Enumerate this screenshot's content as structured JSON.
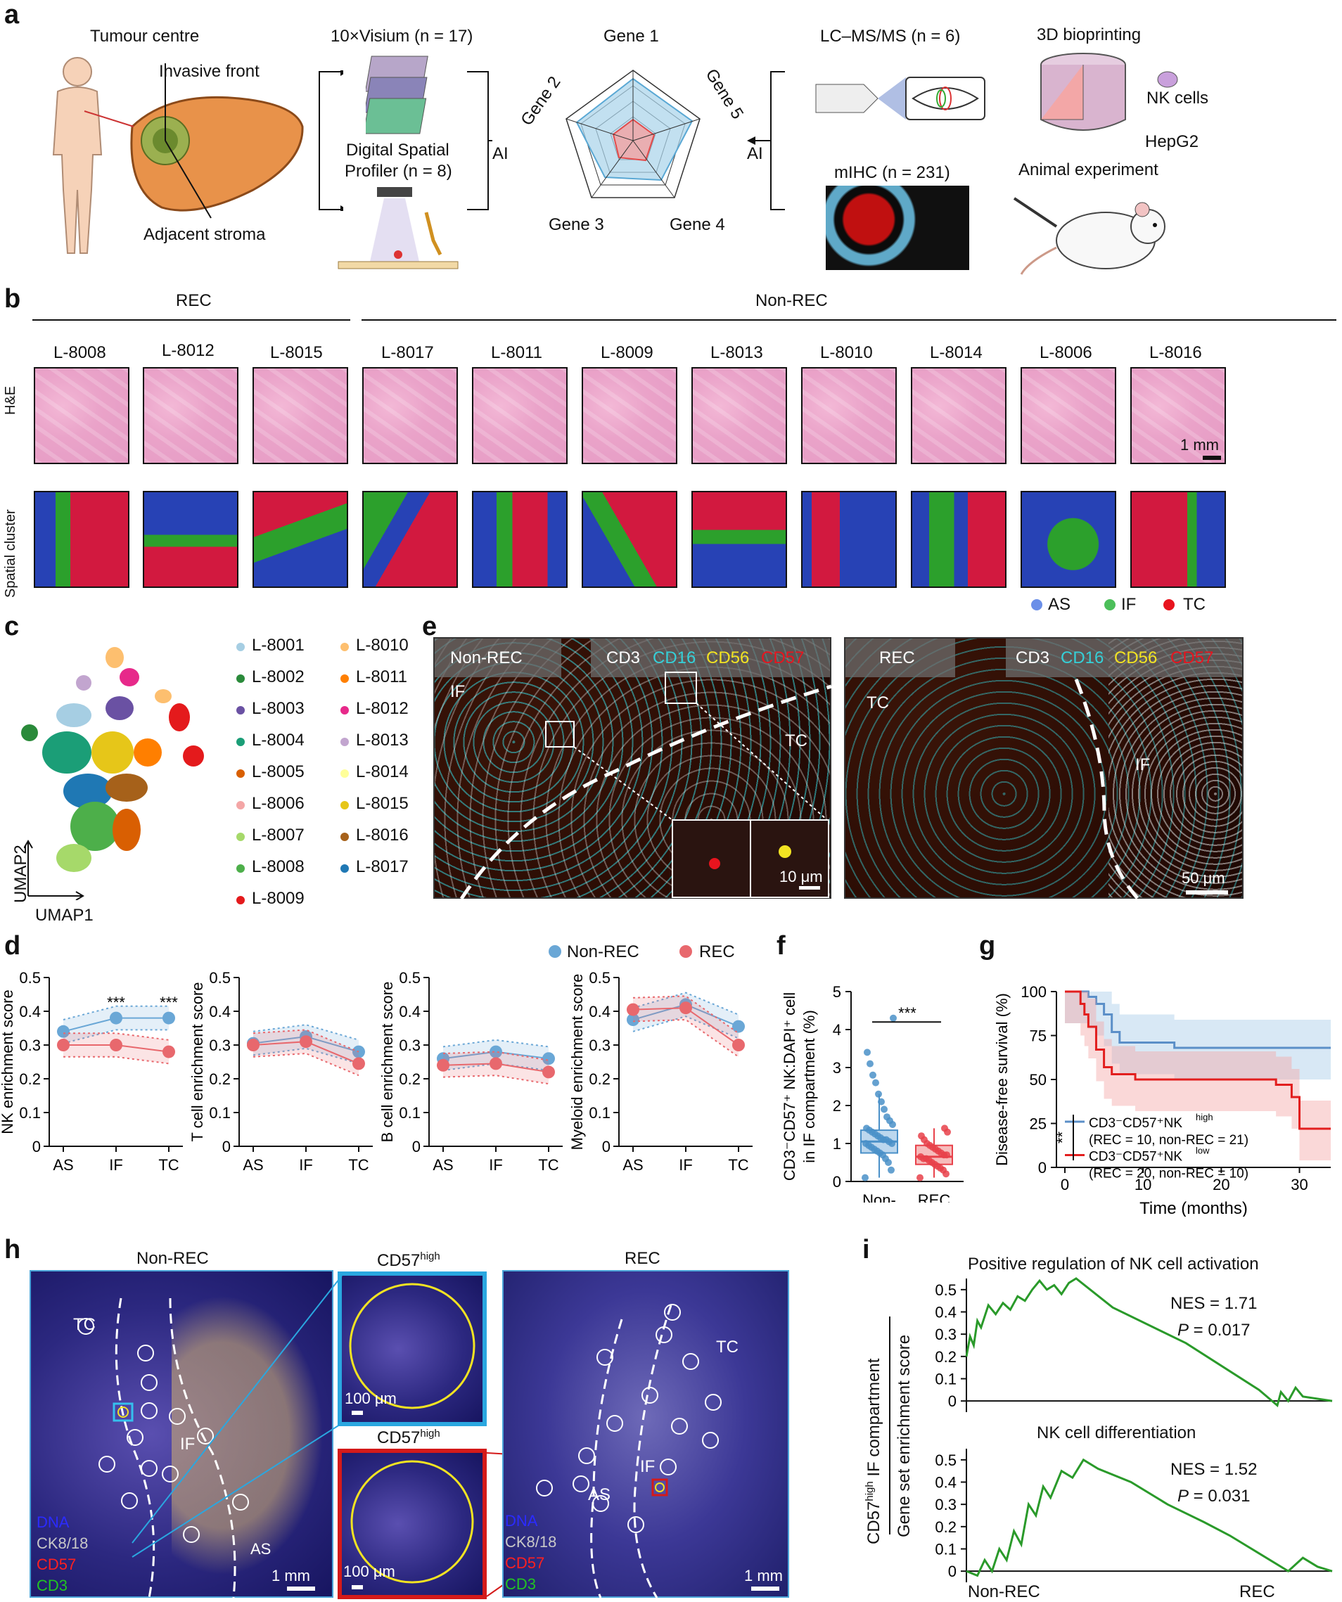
{
  "panels": {
    "a": "a",
    "b": "b",
    "c": "c",
    "d": "d",
    "e": "e",
    "f": "f",
    "g": "g",
    "h": "h",
    "i": "i"
  },
  "panel_a": {
    "tumour_centre": "Tumour centre",
    "invasive_front": "Invasive front",
    "adjacent_stroma": "Adjacent stroma",
    "visium": "10×Visium (n = 17)",
    "dsp_line1": "Digital Spatial",
    "dsp_line2": "Profiler (n = 8)",
    "ai_left": "AI",
    "ai_right": "AI",
    "radar_labels": [
      "Gene 1",
      "Gene 2",
      "Gene 3",
      "Gene 4",
      "Gene 5"
    ],
    "lcms": "LC–MS/MS (n = 6)",
    "mihc": "mIHC (n = 231)",
    "bioprinting": "3D bioprinting",
    "nk_cells": "NK cells",
    "hepg2": "HepG2",
    "animal": "Animal experiment"
  },
  "panel_b": {
    "group_rec": "REC",
    "group_nonrec": "Non-REC",
    "samples": [
      "L-8008",
      "L-8012",
      "L-8015",
      "L-8017",
      "L-8011",
      "L-8009",
      "L-8013",
      "L-8010",
      "L-8014",
      "L-8006",
      "L-8016"
    ],
    "row_he": "H&E",
    "row_spatial": "Spatial cluster",
    "scale": "1 mm",
    "legend": [
      {
        "label": "AS",
        "color": "#6b8fe8"
      },
      {
        "label": "IF",
        "color": "#4cbf5a"
      },
      {
        "label": "TC",
        "color": "#e8141e"
      }
    ]
  },
  "panel_c": {
    "xaxis": "UMAP1",
    "yaxis": "UMAP2",
    "legend": [
      {
        "label": "L-8001",
        "color": "#a6cee3"
      },
      {
        "label": "L-8002",
        "color": "#2a8a3a"
      },
      {
        "label": "L-8003",
        "color": "#6a51a3"
      },
      {
        "label": "L-8004",
        "color": "#1b9e77"
      },
      {
        "label": "L-8005",
        "color": "#d95f02"
      },
      {
        "label": "L-8006",
        "color": "#f4a6a6"
      },
      {
        "label": "L-8007",
        "color": "#a6d96a"
      },
      {
        "label": "L-8008",
        "color": "#4daf4a"
      },
      {
        "label": "L-8009",
        "color": "#e41a1c"
      },
      {
        "label": "L-8010",
        "color": "#fdbf6f"
      },
      {
        "label": "L-8011",
        "color": "#ff7f00"
      },
      {
        "label": "L-8012",
        "color": "#e7298a"
      },
      {
        "label": "L-8013",
        "color": "#c2a5cf"
      },
      {
        "label": "L-8014",
        "color": "#ffff99"
      },
      {
        "label": "L-8015",
        "color": "#e6c619"
      },
      {
        "label": "L-8016",
        "color": "#a6611a"
      },
      {
        "label": "L-8017",
        "color": "#1f78b4"
      }
    ]
  },
  "panel_e": {
    "left_title": "Non-REC",
    "right_title": "REC",
    "markers": [
      {
        "label": "CD3",
        "color": "#ffffff"
      },
      {
        "label": "CD16",
        "color": "#35d0d8"
      },
      {
        "label": "CD56",
        "color": "#f2e322"
      },
      {
        "label": "CD57",
        "color": "#e8141e"
      }
    ],
    "if_label": "IF",
    "tc_label": "TC",
    "scale_small": "10 μm",
    "scale_large": "50 μm"
  },
  "panel_d": {
    "legend": [
      {
        "label": "Non-REC",
        "color": "#6aa7d6"
      },
      {
        "label": "REC",
        "color": "#e8686d"
      }
    ],
    "signif": [
      "***",
      "***"
    ]
  },
  "panel_f": {
    "ylabel_line1": "CD3⁻CD57⁺ NK:DAPI⁺ cell",
    "ylabel_line2": "in IF compartment (%)",
    "signif": "***",
    "xticks_line1": [
      "Non-",
      "REC"
    ],
    "xticks_line2": [
      "REC",
      ""
    ]
  },
  "panel_g": {
    "signif": "**",
    "legend_high_1": "CD3⁻CD57⁺NK",
    "legend_high_sup": "high",
    "legend_high_2": "(REC = 10, non-REC = 21)",
    "legend_low_1": "CD3⁻CD57⁺NK",
    "legend_low_sup": "low",
    "legend_low_2": "(REC = 20, non-REC = 10)"
  },
  "panel_h": {
    "left_title": "Non-REC",
    "right_title": "REC",
    "zoom_title_main": "CD57",
    "zoom_title_sup": "high",
    "region_labels": [
      "TC",
      "IF",
      "AS"
    ],
    "channels": [
      {
        "label": "DNA",
        "color": "#2b2bff"
      },
      {
        "label": "CK8/18",
        "color": "#c8c8c8"
      },
      {
        "label": "CD57",
        "color": "#ff2020"
      },
      {
        "label": "CD3",
        "color": "#22c322"
      }
    ],
    "scale_mm": "1 mm",
    "scale_um": "100 μm"
  },
  "panel_i": {
    "title1": "Positive regulation of NK cell activation",
    "title2": "NK cell differentiation",
    "nes1": "NES = 1.71",
    "p1_label": "P",
    "p1_value": " = 0.017",
    "nes2": "NES = 1.52",
    "p2_label": "P",
    "p2_value": " = 0.031",
    "ylabel_outer_1": "CD57",
    "ylabel_outer_sup": "high",
    "ylabel_outer_2": " IF compartment",
    "ylabel_inner": "Gene set enrichment score",
    "x_left": "Non-REC",
    "x_right": "REC"
  },
  "chart_data": [
    {
      "type": "line",
      "panel": "d",
      "ylabel": "NK enrichment score",
      "categories": [
        "AS",
        "IF",
        "TC"
      ],
      "ylim": [
        0,
        0.5
      ],
      "yticks": [
        "0",
        "0.1",
        "0.2",
        "0.3",
        "0.4",
        "0.5"
      ],
      "series": [
        {
          "name": "Non-REC",
          "values": [
            0.34,
            0.38,
            0.38
          ]
        },
        {
          "name": "REC",
          "values": [
            0.3,
            0.3,
            0.28
          ]
        }
      ]
    },
    {
      "type": "line",
      "panel": "d",
      "ylabel": "T cell enrichment score",
      "categories": [
        "AS",
        "IF",
        "TC"
      ],
      "ylim": [
        0,
        0.5
      ],
      "yticks": [
        "0",
        "0.1",
        "0.2",
        "0.3",
        "0.4",
        "0.5"
      ],
      "series": [
        {
          "name": "Non-REC",
          "values": [
            0.305,
            0.325,
            0.28
          ]
        },
        {
          "name": "REC",
          "values": [
            0.3,
            0.31,
            0.245
          ]
        }
      ]
    },
    {
      "type": "line",
      "panel": "d",
      "ylabel": "B cell enrichment score",
      "categories": [
        "AS",
        "IF",
        "TC"
      ],
      "ylim": [
        0,
        0.5
      ],
      "yticks": [
        "0",
        "0.1",
        "0.2",
        "0.3",
        "0.4",
        "0.5"
      ],
      "series": [
        {
          "name": "Non-REC",
          "values": [
            0.26,
            0.28,
            0.26
          ]
        },
        {
          "name": "REC",
          "values": [
            0.24,
            0.245,
            0.22
          ]
        }
      ]
    },
    {
      "type": "line",
      "panel": "d",
      "ylabel": "Myeloid enrichment score",
      "categories": [
        "AS",
        "IF",
        "TC"
      ],
      "ylim": [
        0,
        0.5
      ],
      "yticks": [
        "0",
        "0.1",
        "0.2",
        "0.3",
        "0.4",
        "0.5"
      ],
      "series": [
        {
          "name": "Non-REC",
          "values": [
            0.375,
            0.42,
            0.355
          ]
        },
        {
          "name": "REC",
          "values": [
            0.405,
            0.41,
            0.3
          ]
        }
      ]
    },
    {
      "type": "box",
      "panel": "f",
      "ylim": [
        0,
        5
      ],
      "yticks": [
        "0",
        "1",
        "2",
        "3",
        "4",
        "5"
      ],
      "groups": [
        {
          "name": "Non-REC",
          "median": 1.05,
          "q1": 0.75,
          "q3": 1.35,
          "min": 0.1,
          "max": 2.3,
          "points": [
            0.1,
            0.3,
            0.5,
            0.6,
            0.7,
            0.75,
            0.8,
            0.85,
            0.9,
            0.95,
            1.0,
            1.0,
            1.05,
            1.1,
            1.1,
            1.15,
            1.2,
            1.25,
            1.3,
            1.35,
            1.4,
            1.5,
            1.6,
            1.7,
            1.9,
            2.1,
            2.3,
            2.6,
            2.8,
            3.1,
            3.4,
            4.3
          ]
        },
        {
          "name": "REC",
          "median": 0.65,
          "q1": 0.45,
          "q3": 0.95,
          "min": 0.1,
          "max": 1.4,
          "points": [
            0.1,
            0.2,
            0.3,
            0.35,
            0.4,
            0.45,
            0.5,
            0.55,
            0.6,
            0.6,
            0.65,
            0.7,
            0.7,
            0.75,
            0.8,
            0.85,
            0.9,
            0.95,
            1.0,
            1.1,
            1.2,
            1.3,
            1.4
          ]
        }
      ]
    },
    {
      "type": "line",
      "panel": "g",
      "ylabel": "Disease-free survival (%)",
      "xlabel": "Time (months)",
      "xlim": [
        0,
        34
      ],
      "ylim": [
        0,
        100
      ],
      "xticks": [
        "0",
        "10",
        "20",
        "30"
      ],
      "yticks": [
        "0",
        "25",
        "50",
        "75",
        "100"
      ],
      "series": [
        {
          "name": "CD3⁻CD57⁺NK high",
          "x": [
            0,
            2,
            3,
            4,
            5,
            6,
            7,
            14,
            34
          ],
          "y": [
            100,
            100,
            97,
            93,
            87,
            77,
            71,
            68,
            68
          ]
        },
        {
          "name": "CD3⁻CD57⁺NK low",
          "x": [
            0,
            1.5,
            2,
            2.5,
            3,
            4,
            5,
            6,
            9,
            19,
            27,
            29,
            30,
            34
          ],
          "y": [
            100,
            100,
            93,
            87,
            80,
            67,
            57,
            53,
            50,
            50,
            47,
            40,
            22,
            22
          ]
        }
      ]
    },
    {
      "type": "line",
      "panel": "i",
      "title": "Positive regulation of NK cell activation",
      "ylim": [
        0,
        0.5
      ],
      "yticks": [
        "0",
        "0.1",
        "0.2",
        "0.3",
        "0.4",
        "0.5"
      ],
      "x": [
        0,
        1,
        2,
        3,
        4,
        6,
        8,
        10,
        12,
        14,
        16,
        18,
        20,
        22,
        24,
        26,
        28,
        30,
        40,
        60,
        80,
        85,
        86,
        88,
        90,
        92,
        100
      ],
      "y": [
        0.2,
        0.29,
        0.25,
        0.36,
        0.33,
        0.43,
        0.39,
        0.44,
        0.41,
        0.47,
        0.45,
        0.5,
        0.54,
        0.5,
        0.52,
        0.48,
        0.53,
        0.55,
        0.42,
        0.26,
        0.05,
        -0.02,
        0.04,
        0.0,
        0.06,
        0.02,
        0.0
      ]
    },
    {
      "type": "line",
      "panel": "i",
      "title": "NK cell differentiation",
      "ylim": [
        0,
        0.5
      ],
      "yticks": [
        "0",
        "0.1",
        "0.2",
        "0.3",
        "0.4",
        "0.5"
      ],
      "x": [
        0,
        3,
        5,
        7,
        9,
        11,
        13,
        15,
        17,
        19,
        21,
        23,
        26,
        29,
        32,
        36,
        45,
        55,
        65,
        72,
        80,
        88,
        92,
        96,
        100
      ],
      "y": [
        0.0,
        -0.02,
        0.05,
        0.0,
        0.1,
        0.05,
        0.18,
        0.12,
        0.3,
        0.25,
        0.38,
        0.33,
        0.45,
        0.42,
        0.5,
        0.46,
        0.4,
        0.3,
        0.22,
        0.16,
        0.08,
        0.0,
        0.06,
        0.02,
        0.0
      ]
    }
  ]
}
